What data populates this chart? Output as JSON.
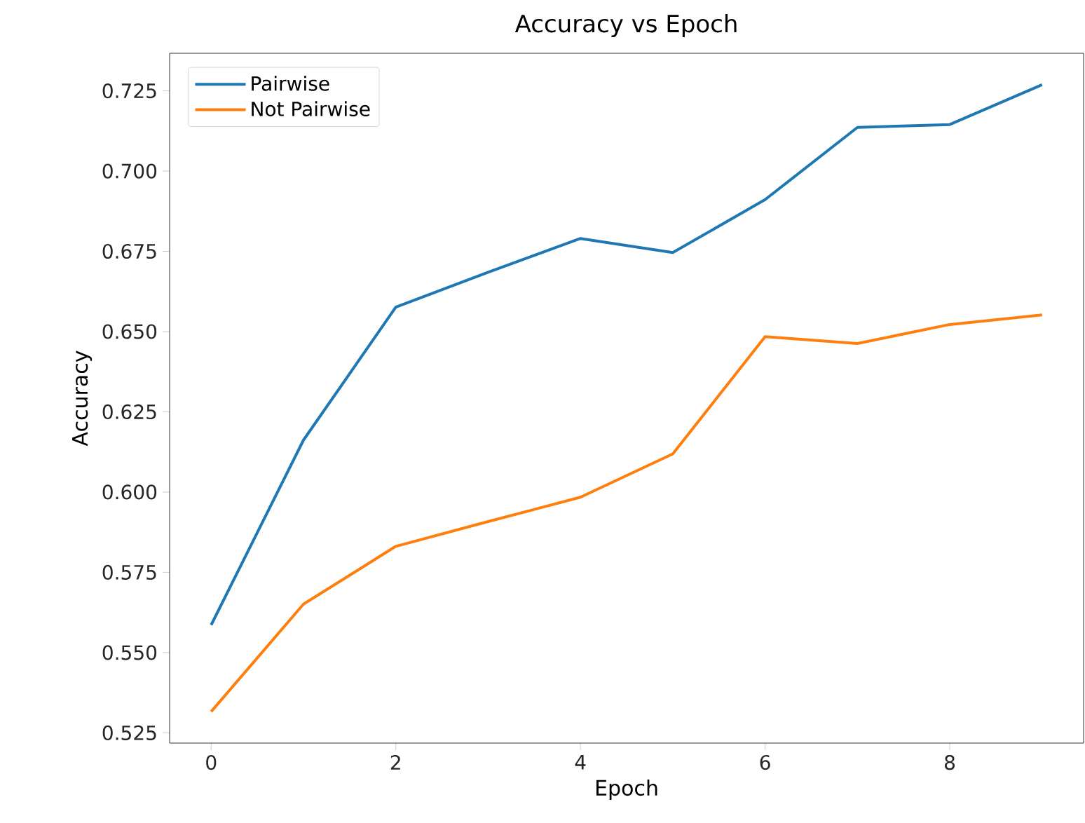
{
  "chart_data": {
    "type": "line",
    "title": "Accuracy vs Epoch",
    "xlabel": "Epoch",
    "ylabel": "Accuracy",
    "x": [
      0,
      1,
      2,
      3,
      4,
      5,
      6,
      7,
      8,
      9
    ],
    "series": [
      {
        "name": "Pairwise",
        "color": "#1f77b4",
        "values": [
          0.5586,
          0.6162,
          0.6576,
          0.6685,
          0.679,
          0.6746,
          0.6911,
          0.7136,
          0.7145,
          0.7269
        ]
      },
      {
        "name": "Not Pairwise",
        "color": "#ff7f0e",
        "values": [
          0.5316,
          0.5651,
          0.5831,
          0.5908,
          0.5984,
          0.6119,
          0.6484,
          0.6463,
          0.6522,
          0.6552
        ]
      }
    ],
    "xlim": [
      -0.45,
      9.45
    ],
    "ylim": [
      0.5218,
      0.7367
    ],
    "xticks": [
      0,
      2,
      4,
      6,
      8
    ],
    "yticks": [
      {
        "value": 0.525,
        "label": "0.525"
      },
      {
        "value": 0.55,
        "label": "0.550"
      },
      {
        "value": 0.575,
        "label": "0.575"
      },
      {
        "value": 0.6,
        "label": "0.600"
      },
      {
        "value": 0.625,
        "label": "0.625"
      },
      {
        "value": 0.65,
        "label": "0.650"
      },
      {
        "value": 0.675,
        "label": "0.675"
      },
      {
        "value": 0.7,
        "label": "0.700"
      },
      {
        "value": 0.725,
        "label": "0.725"
      }
    ],
    "legend": "top left",
    "grid": false,
    "marker": "none",
    "line_style": "solid"
  }
}
